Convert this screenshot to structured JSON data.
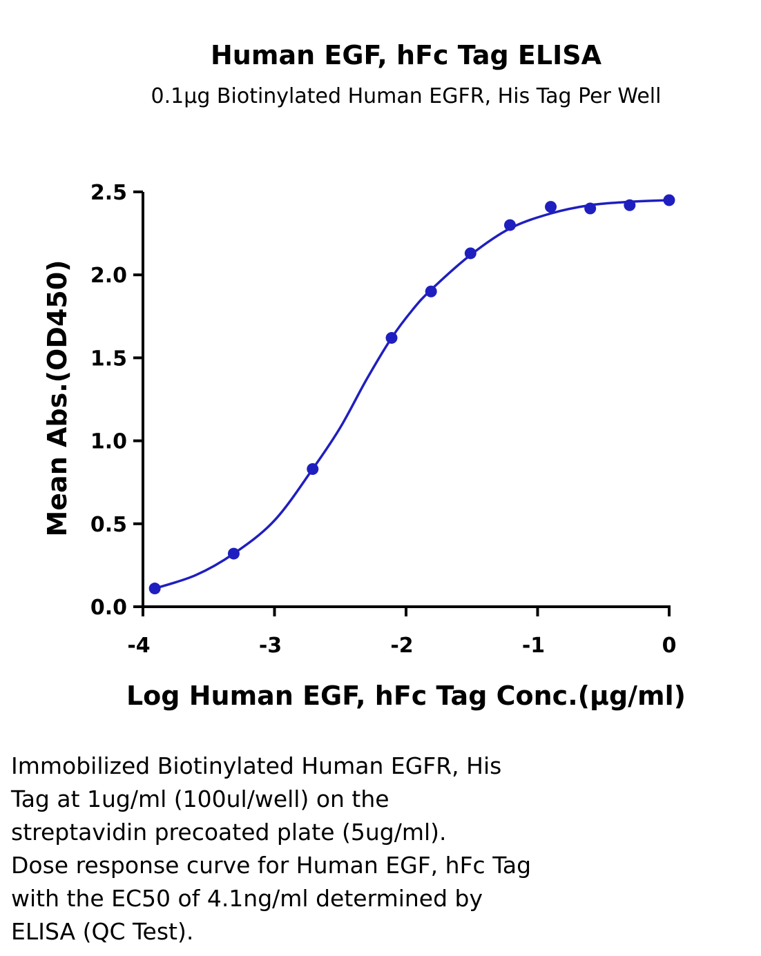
{
  "chart_data": {
    "type": "scatter",
    "title": "Human EGF, hFc Tag ELISA",
    "subtitle": "0.1μg Biotinylated Human EGFR, His Tag Per Well",
    "xlabel": "Log Human EGF, hFc Tag Conc.(μg/ml)",
    "ylabel": "Mean Abs.(OD450)",
    "xlim": [
      -4,
      0
    ],
    "ylim": [
      0,
      2.5
    ],
    "x_ticks": [
      "-4",
      "-3",
      "-2",
      "-1",
      "0"
    ],
    "y_ticks": [
      "0.0",
      "0.5",
      "1.0",
      "1.5",
      "2.0",
      "2.5"
    ],
    "grid": false,
    "series": [
      {
        "points": [
          {
            "x": -3.91,
            "y": 0.11
          },
          {
            "x": -3.31,
            "y": 0.32
          },
          {
            "x": -2.71,
            "y": 0.83
          },
          {
            "x": -2.11,
            "y": 1.62
          },
          {
            "x": -1.81,
            "y": 1.9
          },
          {
            "x": -1.51,
            "y": 2.13
          },
          {
            "x": -1.21,
            "y": 2.3
          },
          {
            "x": -0.9,
            "y": 2.41
          },
          {
            "x": -0.6,
            "y": 2.4
          },
          {
            "x": -0.3,
            "y": 2.42
          },
          {
            "x": 0.0,
            "y": 2.45
          }
        ],
        "fit_curve": [
          {
            "x": -3.91,
            "y": 0.11
          },
          {
            "x": -3.6,
            "y": 0.19
          },
          {
            "x": -3.31,
            "y": 0.32
          },
          {
            "x": -3.0,
            "y": 0.52
          },
          {
            "x": -2.71,
            "y": 0.83
          },
          {
            "x": -2.5,
            "y": 1.08
          },
          {
            "x": -2.3,
            "y": 1.37
          },
          {
            "x": -2.11,
            "y": 1.62
          },
          {
            "x": -1.95,
            "y": 1.79
          },
          {
            "x": -1.81,
            "y": 1.91
          },
          {
            "x": -1.51,
            "y": 2.12
          },
          {
            "x": -1.21,
            "y": 2.28
          },
          {
            "x": -0.9,
            "y": 2.37
          },
          {
            "x": -0.6,
            "y": 2.42
          },
          {
            "x": -0.3,
            "y": 2.44
          },
          {
            "x": 0.0,
            "y": 2.45
          }
        ]
      }
    ],
    "colors": {
      "series": "#1f1fbf",
      "axis": "#000000"
    }
  },
  "caption": "Immobilized Biotinylated Human EGFR, His\nTag at 1ug/ml (100ul/well) on the\nstreptavidin precoated plate (5ug/ml).\nDose response curve for Human EGF, hFc Tag\nwith the EC50 of 4.1ng/ml determined by\nELISA (QC Test)."
}
